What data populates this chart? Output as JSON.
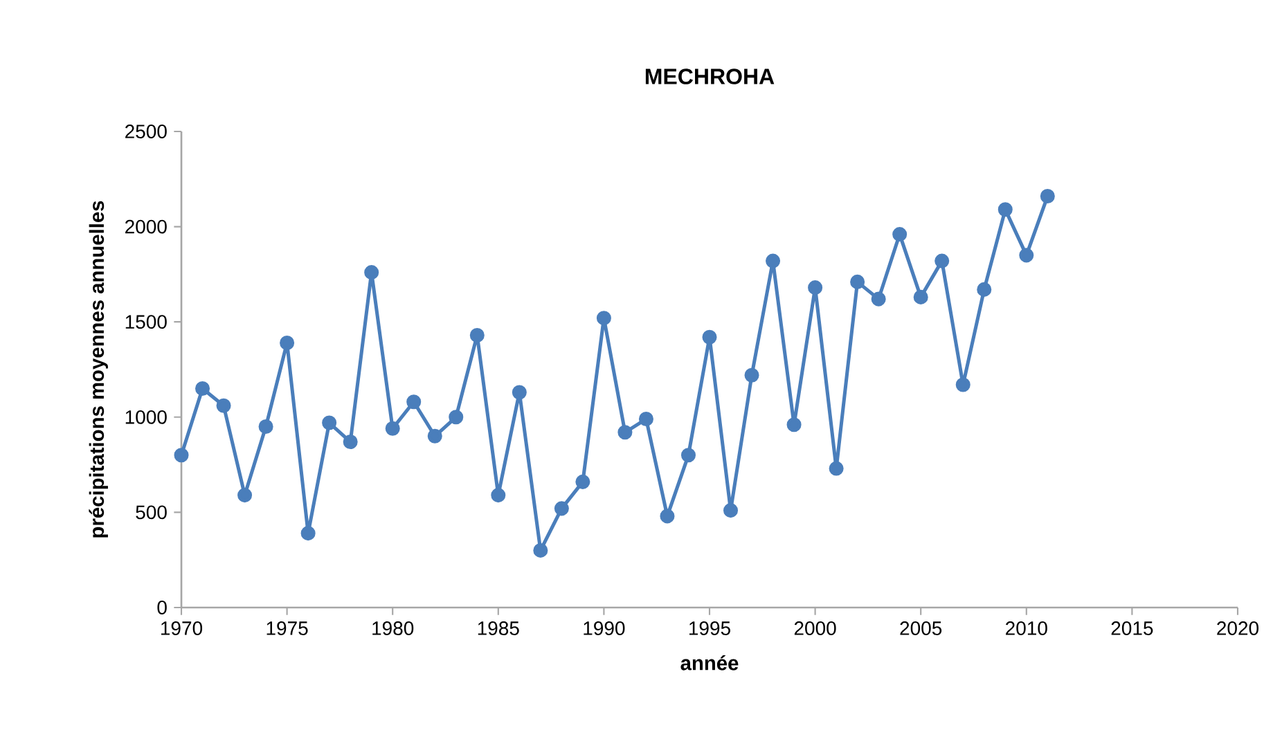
{
  "chart_data": {
    "type": "line",
    "title": "MECHROHA",
    "xlabel": "année",
    "ylabel": "précipitations moyennes annuelles",
    "x": [
      1970,
      1971,
      1972,
      1973,
      1974,
      1975,
      1976,
      1977,
      1978,
      1979,
      1980,
      1981,
      1982,
      1983,
      1984,
      1985,
      1986,
      1987,
      1988,
      1989,
      1990,
      1991,
      1992,
      1993,
      1994,
      1995,
      1996,
      1997,
      1998,
      1999,
      2000,
      2001,
      2002,
      2003,
      2004,
      2005,
      2006,
      2007,
      2008,
      2009,
      2010,
      2011
    ],
    "series": [
      {
        "color": "#4a7ebb",
        "values": [
          800,
          1150,
          1060,
          590,
          950,
          1390,
          390,
          970,
          870,
          1760,
          940,
          1080,
          900,
          1000,
          1430,
          590,
          1130,
          300,
          520,
          660,
          1520,
          920,
          990,
          480,
          800,
          1420,
          510,
          1220,
          1820,
          960,
          1680,
          730,
          1710,
          1620,
          1960,
          1630,
          1820,
          1170,
          1670,
          2090,
          1850,
          2160
        ]
      }
    ],
    "xlim": [
      1970,
      2020
    ],
    "xticks": [
      1970,
      1975,
      1980,
      1985,
      1990,
      1995,
      2000,
      2005,
      2010,
      2015,
      2020
    ],
    "ylim": [
      0,
      2500
    ],
    "yticks": [
      0,
      500,
      1000,
      1500,
      2000,
      2500
    ],
    "grid": false,
    "marker": "circle",
    "line_style": "solid"
  }
}
